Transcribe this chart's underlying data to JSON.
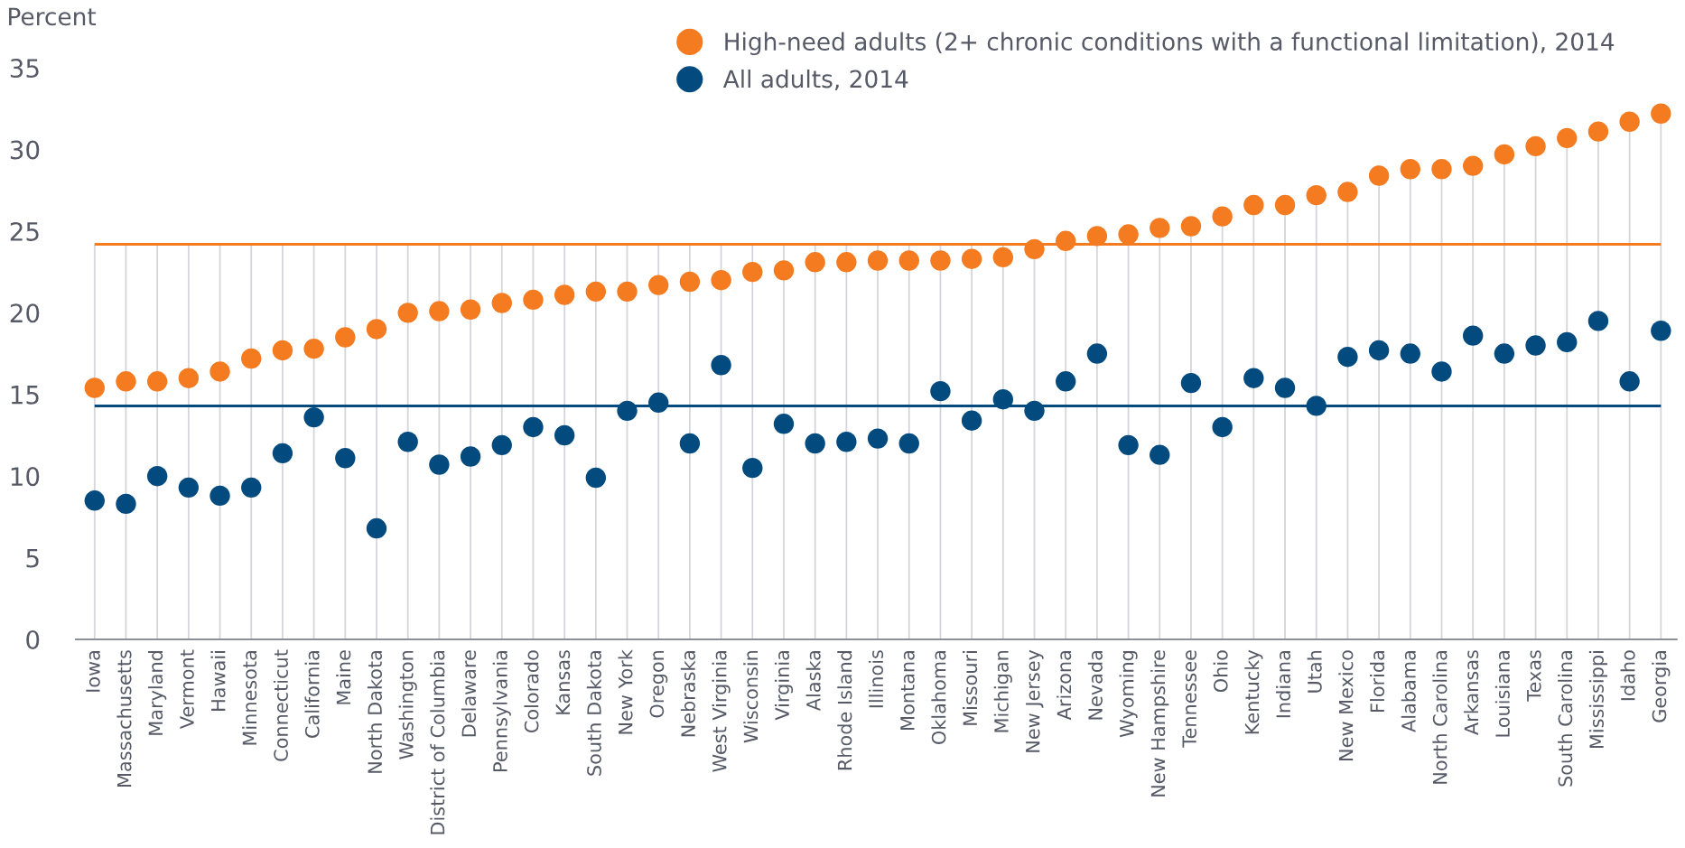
{
  "chart_data": {
    "type": "scatter",
    "ylabel": "Percent",
    "categories": [
      "Iowa",
      "Massachusetts",
      "Maryland",
      "Vermont",
      "Hawaii",
      "Minnesota",
      "Connecticut",
      "California",
      "Maine",
      "North Dakota",
      "Washington",
      "District of Columbia",
      "Delaware",
      "Pennsylvania",
      "Colorado",
      "Kansas",
      "South Dakota",
      "New York",
      "Oregon",
      "Nebraska",
      "West Virginia",
      "Wisconsin",
      "Virginia",
      "Alaska",
      "Rhode Island",
      "Illinois",
      "Montana",
      "Oklahoma",
      "Missouri",
      "Michigan",
      "New Jersey",
      "Arizona",
      "Nevada",
      "Wyoming",
      "New Hampshire",
      "Tennessee",
      "Ohio",
      "Kentucky",
      "Indiana",
      "Utah",
      "New Mexico",
      "Florida",
      "Alabama",
      "North Carolina",
      "Arkansas",
      "Louisiana",
      "Texas",
      "South Carolina",
      "Mississippi",
      "Idaho",
      "Georgia"
    ],
    "series": [
      {
        "name": "High-need adults (2+ chronic conditions with a functional limitation), 2014",
        "color": "#f47b20",
        "values": [
          15.4,
          15.8,
          15.8,
          16.0,
          16.4,
          17.2,
          17.7,
          17.8,
          18.5,
          19.0,
          20.0,
          20.1,
          20.2,
          20.6,
          20.8,
          21.1,
          21.3,
          21.3,
          21.7,
          21.9,
          22.0,
          22.5,
          22.6,
          23.1,
          23.1,
          23.2,
          23.2,
          23.2,
          23.3,
          23.4,
          23.9,
          24.4,
          24.7,
          24.8,
          25.2,
          25.3,
          25.9,
          26.6,
          26.6,
          27.2,
          27.4,
          28.4,
          28.8,
          28.8,
          29.0,
          29.7,
          30.2,
          30.7,
          31.1,
          31.7,
          32.2
        ]
      },
      {
        "name": "All adults, 2014",
        "color": "#034b7f",
        "values": [
          8.5,
          8.3,
          10.0,
          9.3,
          8.8,
          9.3,
          11.4,
          13.6,
          11.1,
          6.8,
          12.1,
          10.7,
          11.2,
          11.9,
          13.0,
          12.5,
          9.9,
          14.0,
          14.5,
          12.0,
          16.8,
          10.5,
          13.2,
          12.0,
          12.1,
          12.3,
          12.0,
          15.2,
          13.4,
          14.7,
          14.0,
          15.8,
          17.5,
          11.9,
          11.3,
          15.7,
          13.0,
          16.0,
          15.4,
          14.3,
          17.3,
          17.7,
          17.5,
          16.4,
          18.6,
          17.5,
          18.0,
          18.2,
          19.5,
          15.8,
          18.9
        ]
      }
    ],
    "ref_lines": [
      {
        "axis": "y",
        "value": 24.2,
        "color": "#f47b20"
      },
      {
        "axis": "y",
        "value": 14.3,
        "color": "#034b7f"
      }
    ],
    "ylim": [
      0,
      35
    ],
    "yticks": [
      0,
      5,
      10,
      15,
      20,
      25,
      30,
      35
    ],
    "grid": "x",
    "legend": "top right",
    "marker": "circle"
  }
}
